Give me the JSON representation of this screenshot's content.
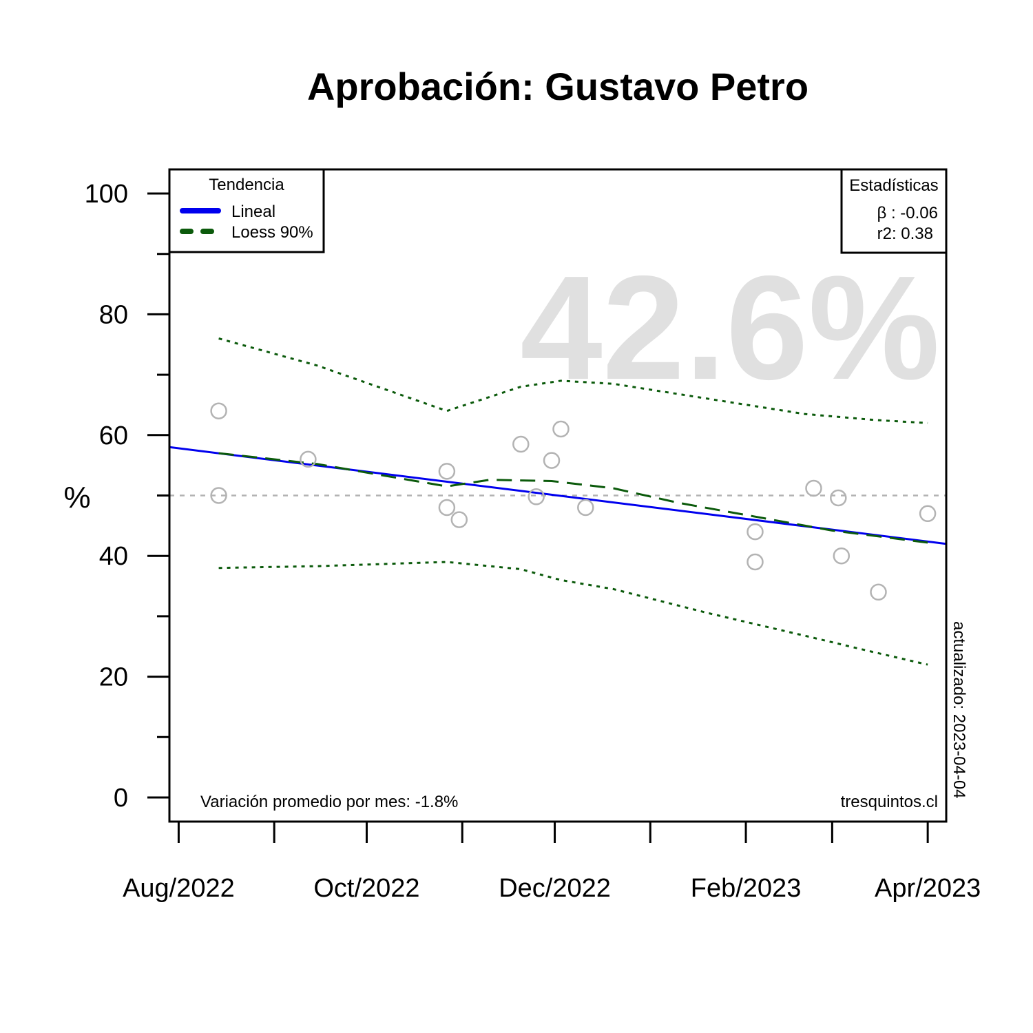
{
  "chart_data": {
    "type": "scatter",
    "title": "Aprobación: Gustavo Petro",
    "ylabel": "%",
    "xlabel": "",
    "ylim": [
      0,
      100
    ],
    "xlim": [
      "2022-07-29",
      "2023-04-07"
    ],
    "y_ticks": [
      "0",
      "20",
      "40",
      "60",
      "80",
      "100"
    ],
    "y_tick_values": [
      0,
      20,
      40,
      60,
      80,
      100
    ],
    "y_minor_ticks": [
      10,
      30,
      50,
      70,
      90
    ],
    "x_ticks": [
      {
        "label": "Aug/2022",
        "date": "2022-08-01"
      },
      {
        "label": "Oct/2022",
        "date": "2022-10-01"
      },
      {
        "label": "Dec/2022",
        "date": "2022-12-01"
      },
      {
        "label": "Feb/2023",
        "date": "2023-02-01"
      },
      {
        "label": "Apr/2023",
        "date": "2023-04-01"
      }
    ],
    "x_minor_ticks": [
      "2022-09-01",
      "2022-11-01",
      "2023-01-01",
      "2023-03-01"
    ],
    "reference_line": 50,
    "points": [
      {
        "date": "2022-08-14",
        "value": 64
      },
      {
        "date": "2022-08-14",
        "value": 50
      },
      {
        "date": "2022-09-12",
        "value": 56
      },
      {
        "date": "2022-10-27",
        "value": 54
      },
      {
        "date": "2022-10-27",
        "value": 48
      },
      {
        "date": "2022-10-31",
        "value": 46
      },
      {
        "date": "2022-11-20",
        "value": 58.5
      },
      {
        "date": "2022-11-25",
        "value": 49.8
      },
      {
        "date": "2022-11-30",
        "value": 55.8
      },
      {
        "date": "2022-12-03",
        "value": 61
      },
      {
        "date": "2022-12-11",
        "value": 48
      },
      {
        "date": "2023-02-04",
        "value": 44
      },
      {
        "date": "2023-02-04",
        "value": 39
      },
      {
        "date": "2023-02-23",
        "value": 51.2
      },
      {
        "date": "2023-03-03",
        "value": 49.6
      },
      {
        "date": "2023-03-04",
        "value": 40
      },
      {
        "date": "2023-03-16",
        "value": 34
      },
      {
        "date": "2023-04-01",
        "value": 47
      }
    ],
    "series": [
      {
        "name": "Lineal",
        "color": "#0000ee",
        "style": "solid",
        "points": [
          [
            "2022-07-29",
            58
          ],
          [
            "2023-04-07",
            42
          ]
        ]
      },
      {
        "name": "Loess 90%",
        "color": "#0b5a0b",
        "style": "dashed",
        "points": [
          [
            "2022-08-14",
            57
          ],
          [
            "2022-09-15",
            55.2
          ],
          [
            "2022-10-27",
            51.5
          ],
          [
            "2022-11-10",
            52.6
          ],
          [
            "2022-11-30",
            52.4
          ],
          [
            "2022-12-20",
            51.2
          ],
          [
            "2023-01-10",
            48.8
          ],
          [
            "2023-02-04",
            46.5
          ],
          [
            "2023-03-01",
            44.2
          ],
          [
            "2023-04-01",
            42.2
          ]
        ]
      }
    ],
    "bands": [
      {
        "color": "#0b5a0b",
        "style": "dotted",
        "role": "upper",
        "points": [
          [
            "2022-08-14",
            76
          ],
          [
            "2022-09-15",
            71.5
          ],
          [
            "2022-10-27",
            64
          ],
          [
            "2022-11-20",
            68
          ],
          [
            "2022-12-03",
            69
          ],
          [
            "2022-12-20",
            68.5
          ],
          [
            "2023-01-20",
            66
          ],
          [
            "2023-02-20",
            63.5
          ],
          [
            "2023-03-15",
            62.5
          ],
          [
            "2023-04-01",
            62
          ]
        ]
      },
      {
        "color": "#0b5a0b",
        "style": "dotted",
        "role": "lower",
        "points": [
          [
            "2022-08-14",
            38
          ],
          [
            "2022-09-15",
            38.3
          ],
          [
            "2022-10-27",
            39
          ],
          [
            "2022-11-20",
            37.8
          ],
          [
            "2022-12-03",
            36
          ],
          [
            "2022-12-20",
            34.5
          ],
          [
            "2023-01-20",
            30.5
          ],
          [
            "2023-02-20",
            26.8
          ],
          [
            "2023-03-15",
            24
          ],
          [
            "2023-04-01",
            22
          ]
        ]
      }
    ],
    "grid": false,
    "legend": {
      "title": "Tendencia",
      "placement": "top-left",
      "entries": [
        "Lineal",
        "Loess 90%"
      ]
    },
    "stats_box": {
      "title": "Estadísticas",
      "placement": "top-right",
      "beta": "β : -0.06",
      "r2": "r2: 0.38"
    },
    "highlight_value": "42.6%",
    "footer_left": "Variación promedio por mes: -1.8%",
    "footer_right": "tresquintos.cl",
    "side_note": "actualizado: 2023-04-04",
    "colors": {
      "point": "#b3b3b3",
      "reference": "#b3b3b3",
      "highlight": "#e0e0e0"
    }
  }
}
